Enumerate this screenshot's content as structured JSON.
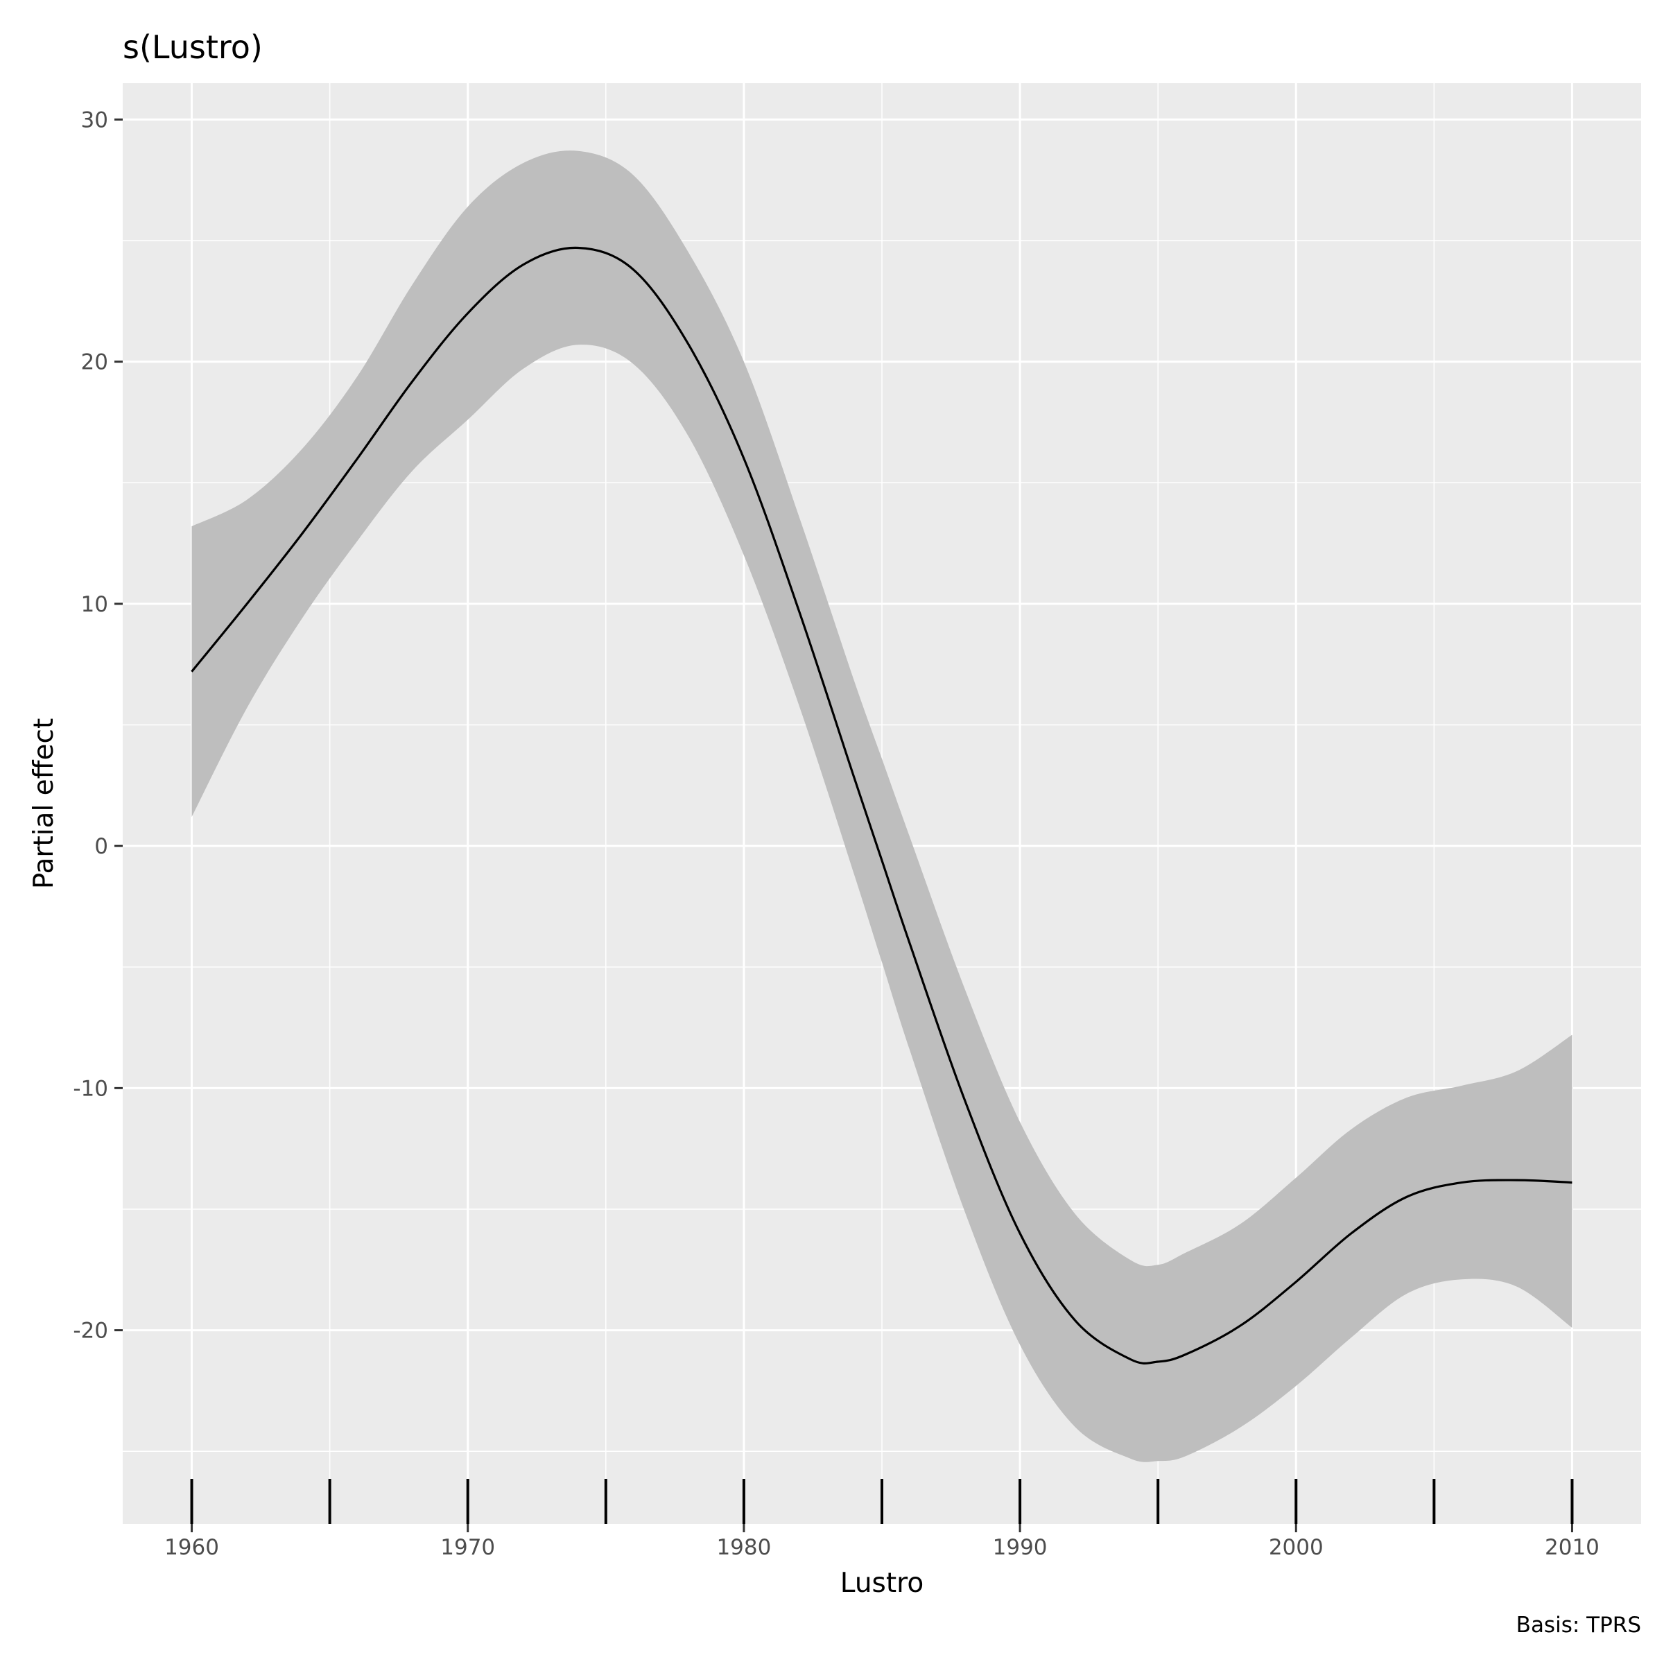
{
  "chart_data": {
    "type": "line",
    "title": "s(Lustro)",
    "xlabel": "Lustro",
    "ylabel": "Partial effect",
    "caption": "Basis: TPRS",
    "xlim": [
      1957.5,
      2012.5
    ],
    "ylim": [
      -28,
      31.5
    ],
    "x_ticks": [
      1960,
      1970,
      1980,
      1990,
      2000,
      2010
    ],
    "x_tick_labels": [
      "1960",
      "1970",
      "1980",
      "1990",
      "2000",
      "2010"
    ],
    "y_ticks": [
      30,
      20,
      10,
      0,
      -10,
      -20
    ],
    "y_tick_labels": [
      "30",
      "20",
      "10",
      "0",
      "-10",
      "-20"
    ],
    "grid": true,
    "rug_x": [
      1960,
      1965,
      1970,
      1975,
      1980,
      1985,
      1990,
      1995,
      2000,
      2005,
      2010
    ],
    "series": [
      {
        "x": [
          1960,
          1962,
          1964,
          1966,
          1968,
          1970,
          1972,
          1974,
          1976,
          1978,
          1980,
          1982,
          1984,
          1985,
          1986,
          1988,
          1990,
          1992,
          1994,
          1995,
          1996,
          1998,
          2000,
          2002,
          2004,
          2006,
          2008,
          2010
        ],
        "y": [
          7.2,
          10.0,
          12.9,
          16.0,
          19.2,
          22.0,
          24.0,
          24.7,
          23.8,
          20.7,
          16.0,
          9.7,
          2.8,
          -0.6,
          -4.0,
          -10.5,
          -16.0,
          -19.6,
          -21.2,
          -21.3,
          -21.0,
          -19.8,
          -18.0,
          -16.0,
          -14.5,
          -13.9,
          -13.8,
          -13.9
        ],
        "lower": [
          1.2,
          5.7,
          9.4,
          12.6,
          15.5,
          17.6,
          19.7,
          20.7,
          19.9,
          16.9,
          12.0,
          5.8,
          -1.2,
          -4.8,
          -8.4,
          -15.1,
          -20.6,
          -24.0,
          -25.3,
          -25.4,
          -25.2,
          -24.0,
          -22.3,
          -20.3,
          -18.5,
          -17.9,
          -18.2,
          -19.9
        ],
        "upper": [
          13.2,
          14.3,
          16.4,
          19.4,
          23.2,
          26.4,
          28.2,
          28.7,
          27.7,
          24.5,
          20.0,
          13.6,
          6.8,
          3.6,
          0.4,
          -5.9,
          -11.4,
          -15.2,
          -17.1,
          -17.3,
          -16.8,
          -15.6,
          -13.7,
          -11.7,
          -10.4,
          -9.9,
          -9.3,
          -7.8
        ]
      }
    ]
  }
}
